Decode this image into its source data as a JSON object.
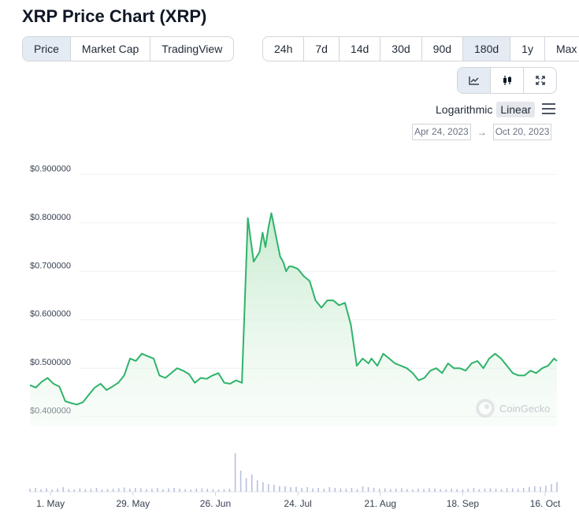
{
  "page": {
    "title": "XRP Price Chart (XRP)"
  },
  "view_tabs": [
    "Price",
    "Market Cap",
    "TradingView"
  ],
  "view_active": "Price",
  "range_tabs": [
    "24h",
    "7d",
    "14d",
    "30d",
    "90d",
    "180d",
    "1y",
    "Max"
  ],
  "range_active": "180d",
  "chart_style": {
    "buttons": [
      "line-chart-icon",
      "candlestick-icon",
      "fullscreen-icon"
    ],
    "active": "line-chart-icon"
  },
  "scale": {
    "log_label": "Logarithmic",
    "linear_label": "Linear",
    "active": "Linear"
  },
  "date_range": {
    "from": "Apr 24, 2023",
    "arrow": "→",
    "to": "Oct 20, 2023"
  },
  "watermark": "CoinGecko",
  "colors": {
    "line": "#2fb36a",
    "fill_top": "#c8ecd0",
    "active_tab": "#e5ebf3"
  },
  "chart_data": {
    "type": "area",
    "title": "",
    "xlabel": "",
    "ylabel": "",
    "ylim": [
      0.38,
      0.92
    ],
    "xlim": [
      "2023-04-24",
      "2023-10-20"
    ],
    "y_ticks": [
      0.4,
      0.5,
      0.6,
      0.7,
      0.8,
      0.9
    ],
    "y_tick_labels": [
      "$0.400000",
      "$0.500000",
      "$0.600000",
      "$0.700000",
      "$0.800000",
      "$0.900000"
    ],
    "x_ticks": [
      "2023-05-01",
      "2023-05-29",
      "2023-06-26",
      "2023-07-24",
      "2023-08-21",
      "2023-09-18",
      "2023-10-16"
    ],
    "x_tick_labels": [
      "1. May",
      "29. May",
      "26. Jun",
      "24. Jul",
      "21. Aug",
      "18. Sep",
      "16. Oct"
    ],
    "grid": true,
    "series": [
      {
        "x": [
          "2023-04-24",
          "2023-04-26",
          "2023-04-28",
          "2023-04-30",
          "2023-05-02",
          "2023-05-04",
          "2023-05-06",
          "2023-05-08",
          "2023-05-10",
          "2023-05-12",
          "2023-05-14",
          "2023-05-16",
          "2023-05-18",
          "2023-05-20",
          "2023-05-22",
          "2023-05-24",
          "2023-05-26",
          "2023-05-28",
          "2023-05-30",
          "2023-06-01",
          "2023-06-03",
          "2023-06-05",
          "2023-06-07",
          "2023-06-09",
          "2023-06-11",
          "2023-06-13",
          "2023-06-15",
          "2023-06-17",
          "2023-06-19",
          "2023-06-21",
          "2023-06-23",
          "2023-06-25",
          "2023-06-27",
          "2023-06-29",
          "2023-07-01",
          "2023-07-03",
          "2023-07-05",
          "2023-07-07",
          "2023-07-09",
          "2023-07-11",
          "2023-07-12",
          "2023-07-13",
          "2023-07-14",
          "2023-07-15",
          "2023-07-16",
          "2023-07-17",
          "2023-07-18",
          "2023-07-19",
          "2023-07-20",
          "2023-07-21",
          "2023-07-22",
          "2023-07-24",
          "2023-07-26",
          "2023-07-28",
          "2023-07-30",
          "2023-08-01",
          "2023-08-03",
          "2023-08-05",
          "2023-08-07",
          "2023-08-09",
          "2023-08-11",
          "2023-08-13",
          "2023-08-15",
          "2023-08-17",
          "2023-08-18",
          "2023-08-20",
          "2023-08-22",
          "2023-08-24",
          "2023-08-26",
          "2023-08-28",
          "2023-08-30",
          "2023-09-01",
          "2023-09-03",
          "2023-09-05",
          "2023-09-07",
          "2023-09-09",
          "2023-09-11",
          "2023-09-13",
          "2023-09-15",
          "2023-09-17",
          "2023-09-19",
          "2023-09-21",
          "2023-09-23",
          "2023-09-25",
          "2023-09-27",
          "2023-09-29",
          "2023-10-01",
          "2023-10-03",
          "2023-10-05",
          "2023-10-07",
          "2023-10-09",
          "2023-10-11",
          "2023-10-13",
          "2023-10-15",
          "2023-10-17",
          "2023-10-19",
          "2023-10-20"
        ],
        "y": [
          0.465,
          0.46,
          0.472,
          0.48,
          0.468,
          0.462,
          0.432,
          0.428,
          0.425,
          0.43,
          0.445,
          0.46,
          0.468,
          0.455,
          0.462,
          0.47,
          0.485,
          0.52,
          0.515,
          0.53,
          0.525,
          0.52,
          0.485,
          0.48,
          0.49,
          0.5,
          0.495,
          0.488,
          0.47,
          0.48,
          0.478,
          0.485,
          0.49,
          0.47,
          0.468,
          0.475,
          0.47,
          0.81,
          0.72,
          0.74,
          0.78,
          0.75,
          0.79,
          0.82,
          0.79,
          0.76,
          0.73,
          0.72,
          0.7,
          0.71,
          0.71,
          0.705,
          0.69,
          0.68,
          0.64,
          0.625,
          0.64,
          0.64,
          0.63,
          0.635,
          0.59,
          0.505,
          0.52,
          0.51,
          0.52,
          0.505,
          0.53,
          0.52,
          0.51,
          0.505,
          0.5,
          0.49,
          0.475,
          0.48,
          0.495,
          0.5,
          0.49,
          0.51,
          0.5,
          0.5,
          0.495,
          0.51,
          0.515,
          0.5,
          0.52,
          0.53,
          0.52,
          0.505,
          0.49,
          0.485,
          0.485,
          0.495,
          0.49,
          0.5,
          0.505,
          0.52,
          0.515
        ]
      }
    ],
    "volume": {
      "x_range": [
        "2023-04-24",
        "2023-10-20"
      ],
      "values": [
        0.08,
        0.1,
        0.07,
        0.09,
        0.06,
        0.08,
        0.12,
        0.07,
        0.06,
        0.09,
        0.07,
        0.08,
        0.1,
        0.06,
        0.07,
        0.08,
        0.09,
        0.11,
        0.08,
        0.1,
        0.09,
        0.07,
        0.08,
        0.1,
        0.07,
        0.09,
        0.1,
        0.08,
        0.07,
        0.06,
        0.08,
        0.09,
        0.08,
        0.07,
        0.06,
        0.07,
        0.08,
        1.0,
        0.55,
        0.35,
        0.45,
        0.3,
        0.25,
        0.2,
        0.18,
        0.15,
        0.14,
        0.12,
        0.13,
        0.1,
        0.12,
        0.09,
        0.1,
        0.08,
        0.12,
        0.1,
        0.09,
        0.08,
        0.1,
        0.07,
        0.14,
        0.12,
        0.1,
        0.08,
        0.09,
        0.07,
        0.08,
        0.09,
        0.07,
        0.06,
        0.08,
        0.07,
        0.09,
        0.08,
        0.07,
        0.06,
        0.08,
        0.07,
        0.06,
        0.08,
        0.1,
        0.07,
        0.08,
        0.09,
        0.08,
        0.07,
        0.1,
        0.09,
        0.08,
        0.1,
        0.12,
        0.14,
        0.13,
        0.16,
        0.2,
        0.25
      ]
    }
  }
}
